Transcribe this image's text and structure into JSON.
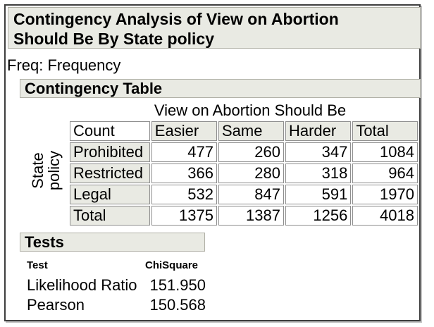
{
  "report": {
    "title_line1": "Contingency Analysis of View on Abortion",
    "title_line2": "Should Be By State policy",
    "freq_note": "Freq: Frequency"
  },
  "contingency": {
    "section_title": "Contingency Table",
    "column_axis_label": "View on Abortion Should Be",
    "row_axis_label_line1": "State",
    "row_axis_label_line2": "policy",
    "corner_label": "Count",
    "columns": [
      "Easier",
      "Same",
      "Harder",
      "Total"
    ],
    "rows": [
      {
        "label": "Prohibited",
        "values": [
          "477",
          "260",
          "347",
          "1084"
        ]
      },
      {
        "label": "Restricted",
        "values": [
          "366",
          "280",
          "318",
          "964"
        ]
      },
      {
        "label": "Legal",
        "values": [
          "532",
          "847",
          "591",
          "1970"
        ]
      },
      {
        "label": "Total",
        "values": [
          "1375",
          "1387",
          "1256",
          "4018"
        ]
      }
    ]
  },
  "tests": {
    "section_title": "Tests",
    "col_test": "Test",
    "col_chisquare": "ChiSquare",
    "rows": [
      {
        "test": "Likelihood Ratio",
        "chisquare": "151.950"
      },
      {
        "test": "Pearson",
        "chisquare": "150.568"
      }
    ]
  },
  "colors": {
    "section_header_bg": "#e9eae3",
    "cell_border": "#8f8f8f",
    "window_border": "#3e3e3e"
  }
}
